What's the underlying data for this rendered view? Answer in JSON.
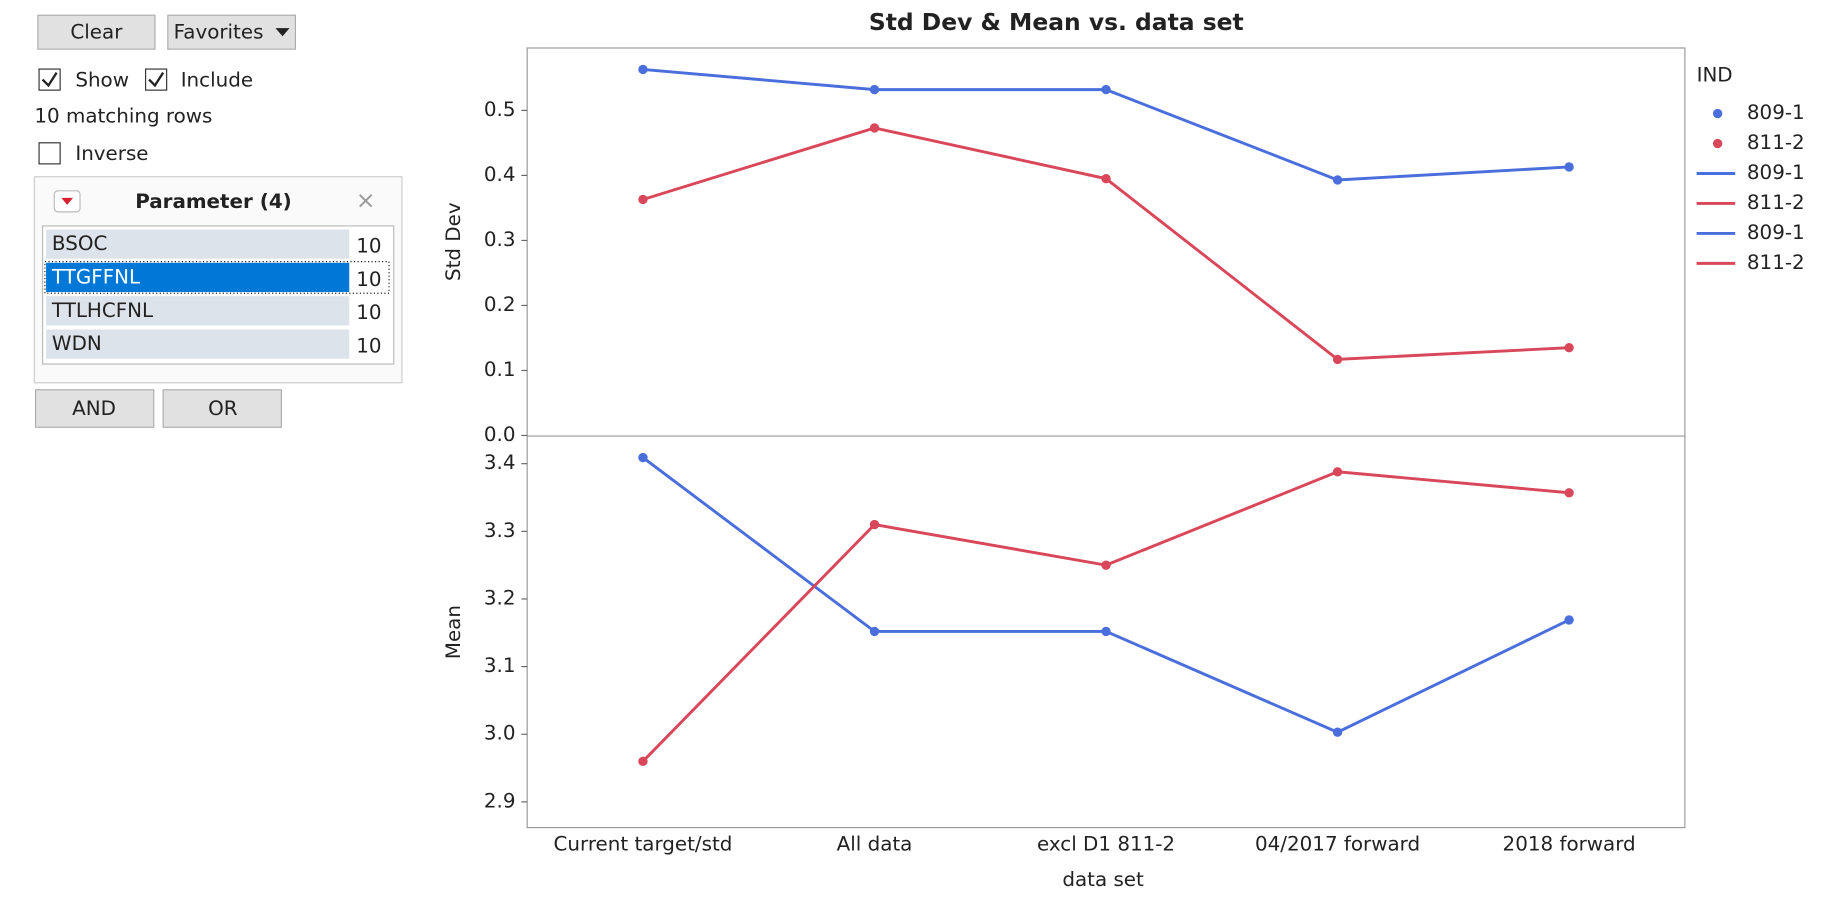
{
  "filter": {
    "clear": "Clear",
    "favorites": "Favorites",
    "show": "Show",
    "include": "Include",
    "matching": "10 matching rows",
    "inverse": "Inverse",
    "panel_title": "Parameter (4)",
    "items": [
      {
        "name": "BSOC",
        "count": 10
      },
      {
        "name": "TTGFFNL",
        "count": 10,
        "selected": true
      },
      {
        "name": "TTLHCFNL",
        "count": 10
      },
      {
        "name": "WDN",
        "count": 10
      }
    ],
    "and": "AND",
    "or": "OR"
  },
  "chart_data": {
    "type": "line",
    "title": "Std Dev & Mean vs. data set",
    "x_label": "data set",
    "categories": [
      "Current target/std",
      "All data",
      "excl D1 811-2",
      "04/2017 forward",
      "2018 forward"
    ],
    "legend": {
      "title": "IND",
      "items": [
        {
          "name": "809-1",
          "color": "#4a6fdc",
          "style": "marker"
        },
        {
          "name": "811-2",
          "color": "#d9485a",
          "style": "marker"
        },
        {
          "name": "809-1",
          "color": "#4a6fdc",
          "style": "line"
        },
        {
          "name": "811-2",
          "color": "#d9485a",
          "style": "line"
        },
        {
          "name": "809-1",
          "color": "#4a6fdc",
          "style": "line"
        },
        {
          "name": "811-2",
          "color": "#d9485a",
          "style": "line"
        }
      ]
    },
    "panels": [
      {
        "y_label": "Std Dev",
        "ylim": [
          0,
          0.596
        ],
        "yticks": [
          {
            "value": 0,
            "label": "0.0"
          },
          0.1,
          0.2,
          0.3,
          0.4,
          0.5
        ],
        "series": [
          {
            "name": "809-1",
            "color": "#4a6fdc",
            "values": [
              0.563,
              0.532,
              0.532,
              0.393,
              0.413
            ]
          },
          {
            "name": "811-2",
            "color": "#d9485a",
            "values": [
              0.363,
              0.473,
              0.395,
              0.117,
              0.135
            ]
          }
        ]
      },
      {
        "y_label": "Mean",
        "ylim": [
          2.862,
          3.44
        ],
        "yticks": [
          2.9,
          {
            "value": 3,
            "label": "3.0"
          },
          3.1,
          3.2,
          3.3,
          3.4
        ],
        "series": [
          {
            "name": "809-1",
            "color": "#4a6fdc",
            "values": [
              3.409,
              3.152,
              3.152,
              3.003,
              3.169
            ]
          },
          {
            "name": "811-2",
            "color": "#d9485a",
            "values": [
              2.96,
              3.31,
              3.25,
              3.388,
              3.357
            ]
          }
        ]
      }
    ]
  }
}
